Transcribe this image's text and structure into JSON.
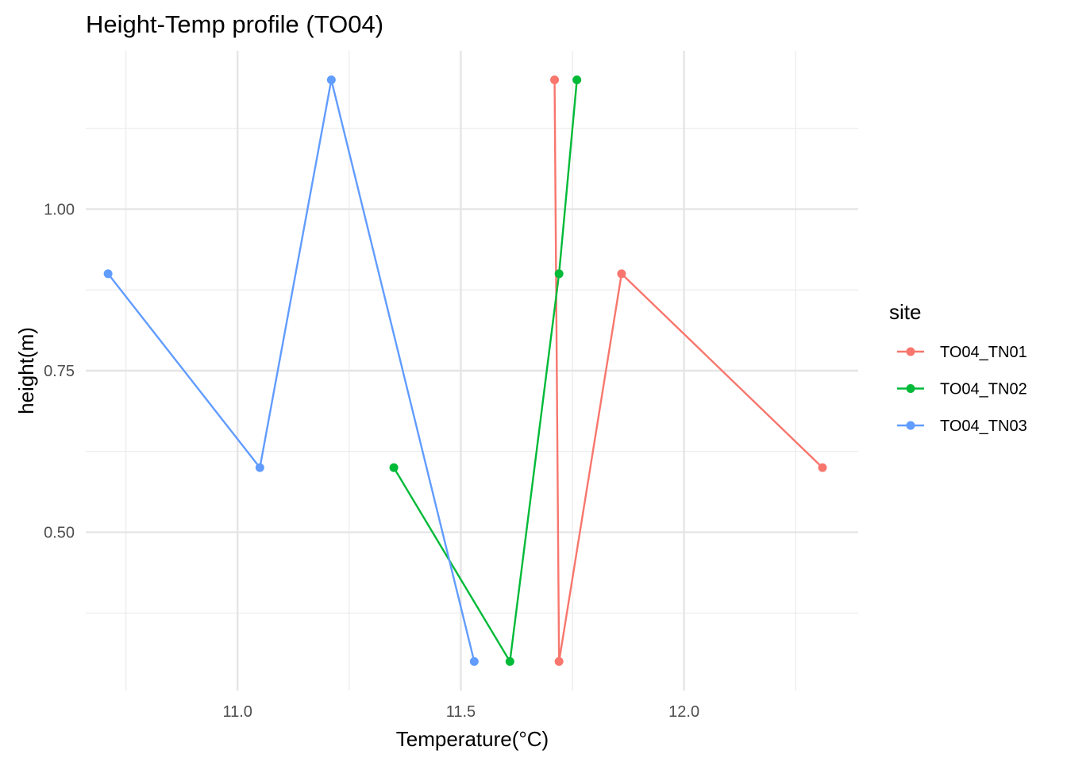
{
  "chart_data": {
    "type": "line",
    "title": "Height-Temp profile (TO04)",
    "xlabel": "Temperature(°C)",
    "ylabel": "height(m)",
    "xlim": [
      10.66,
      12.39
    ],
    "ylim": [
      0.255,
      1.245
    ],
    "x_ticks": [
      11.0,
      11.5,
      12.0
    ],
    "x_tick_labels": [
      "11.0",
      "11.5",
      "12.0"
    ],
    "x_minor_ticks": [
      10.75,
      11.25,
      11.75,
      12.25
    ],
    "y_ticks": [
      0.5,
      0.75,
      1.0
    ],
    "y_tick_labels": [
      "0.50",
      "0.75",
      "1.00"
    ],
    "y_minor_ticks": [
      0.375,
      0.625,
      0.875,
      1.125
    ],
    "grid": true,
    "legend": {
      "title": "site",
      "placement": "right"
    },
    "series": [
      {
        "name": "TO04_TN01",
        "color": "#F8766D",
        "points": [
          {
            "x": 11.71,
            "y": 1.2
          },
          {
            "x": 11.72,
            "y": 0.3
          },
          {
            "x": 11.86,
            "y": 0.9
          },
          {
            "x": 12.31,
            "y": 0.6
          }
        ]
      },
      {
        "name": "TO04_TN02",
        "color": "#00BA38",
        "points": [
          {
            "x": 11.35,
            "y": 0.6
          },
          {
            "x": 11.61,
            "y": 0.3
          },
          {
            "x": 11.72,
            "y": 0.9
          },
          {
            "x": 11.76,
            "y": 1.2
          }
        ]
      },
      {
        "name": "TO04_TN03",
        "color": "#619CFF",
        "points": [
          {
            "x": 10.71,
            "y": 0.9
          },
          {
            "x": 11.05,
            "y": 0.6
          },
          {
            "x": 11.21,
            "y": 1.2
          },
          {
            "x": 11.53,
            "y": 0.3
          }
        ]
      }
    ]
  }
}
